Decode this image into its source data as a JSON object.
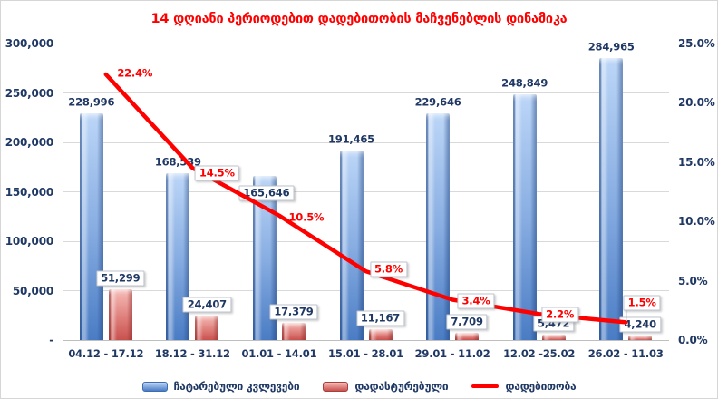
{
  "chart_data": {
    "type": "combo-bar-line",
    "title": "14 დღიანი პერიოდებით დადებითობის მაჩვენებლის დინამიკა",
    "categories": [
      "04.12 - 17.12",
      "18.12 - 31.12",
      "01.01 - 14.01",
      "15.01 - 28.01",
      "29.01 - 11.02",
      "12.02 -25.02",
      "26.02 - 11.03"
    ],
    "series": [
      {
        "name": "ჩატარებული კვლევები",
        "type": "bar",
        "axis": "left",
        "color": "#4a7cc4",
        "values": [
          228996,
          168539,
          165646,
          191465,
          229646,
          248849,
          284965
        ],
        "labels": [
          "228,996",
          "168,539",
          "165,646",
          "191,465",
          "229,646",
          "248,849",
          "284,965"
        ]
      },
      {
        "name": "დადასტურებული",
        "type": "bar",
        "axis": "left",
        "color": "#c9514e",
        "values": [
          51299,
          24407,
          17379,
          11167,
          7709,
          5472,
          4240
        ],
        "labels": [
          "51,299",
          "24,407",
          "17,379",
          "11,167",
          "7,709",
          "5,472",
          "4,240"
        ]
      },
      {
        "name": "დადებითობა",
        "type": "line",
        "axis": "right",
        "color": "#ff0000",
        "values": [
          22.4,
          14.5,
          10.5,
          5.8,
          3.4,
          2.2,
          1.5
        ],
        "labels": [
          "22.4%",
          "14.5%",
          "10.5%",
          "5.8%",
          "3.4%",
          "2.2%",
          "1.5%"
        ]
      }
    ],
    "left_axis": {
      "min": 0,
      "max": 300000,
      "ticks": [
        "300,000",
        "250,000",
        "200,000",
        "150,000",
        "100,000",
        "50,000",
        "-"
      ]
    },
    "right_axis": {
      "min": 0,
      "max": 25,
      "ticks": [
        "25.0%",
        "20.0%",
        "15.0%",
        "10.0%",
        "5.0%",
        "0.0%"
      ]
    },
    "grid": true,
    "legend_position": "bottom",
    "colors": {
      "title_text": "#ff0000",
      "axis_text": "#1f3864",
      "gridline": "#d9d9d9",
      "bar_blue": "#4a7cc4",
      "bar_red": "#c9514e",
      "line_red": "#ff0000"
    }
  }
}
